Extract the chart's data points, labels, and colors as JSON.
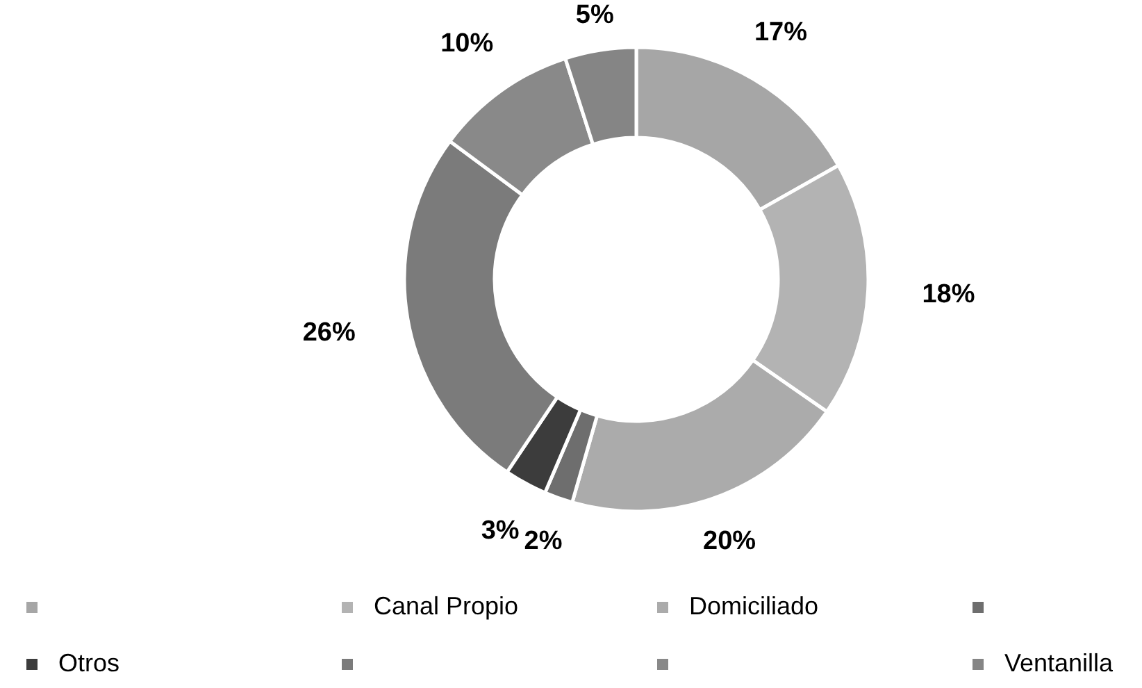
{
  "chart_data": {
    "type": "donut",
    "categories": [
      null,
      "Canal Propio",
      "Domiciliado",
      null,
      "Otros",
      null,
      null,
      "Ventanilla"
    ],
    "values": [
      17,
      18,
      20,
      2,
      3,
      26,
      10,
      5
    ],
    "value_labels": [
      "17%",
      "18%",
      "20%",
      "2%",
      "3%",
      "26%",
      "10%",
      "5%"
    ],
    "colors": [
      "#a6a6a6",
      "#b3b3b3",
      "#ababab",
      "#6e6e6e",
      "#3c3c3c",
      "#7b7b7b",
      "#898989",
      "#858585"
    ],
    "legend": "bottom"
  }
}
